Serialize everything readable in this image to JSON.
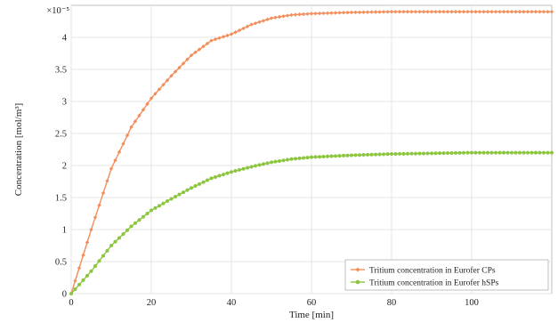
{
  "chart_data": {
    "type": "line",
    "title": "",
    "xlabel": "Time [min]",
    "ylabel": "Concentration [mol/m³]",
    "y_multiplier": "×10⁻⁵",
    "xlim": [
      0,
      120
    ],
    "ylim": [
      0,
      4.5
    ],
    "xticks": [
      0,
      20,
      40,
      60,
      80,
      100
    ],
    "yticks": [
      0,
      0.5,
      1,
      1.5,
      2,
      2.5,
      3,
      3.5,
      4
    ],
    "grid": true,
    "legend_position": "bottom-right",
    "series": [
      {
        "name": "Tritium concentration in Eurofer CPs",
        "color": "#f28e5b",
        "marker": "diamond",
        "x": [
          0,
          5,
          10,
          15,
          20,
          25,
          30,
          35,
          40,
          45,
          50,
          55,
          60,
          70,
          80,
          90,
          100,
          110,
          120
        ],
        "values": [
          0,
          1.0,
          1.95,
          2.6,
          3.05,
          3.4,
          3.72,
          3.95,
          4.05,
          4.2,
          4.3,
          4.35,
          4.37,
          4.39,
          4.4,
          4.4,
          4.4,
          4.4,
          4.4
        ]
      },
      {
        "name": "Tritium concentration in Eurofer hSPs",
        "color": "#8cc63f",
        "marker": "circle",
        "x": [
          0,
          5,
          10,
          15,
          20,
          25,
          30,
          35,
          40,
          45,
          50,
          55,
          60,
          70,
          80,
          90,
          100,
          110,
          120
        ],
        "values": [
          0,
          0.35,
          0.75,
          1.05,
          1.3,
          1.48,
          1.65,
          1.8,
          1.9,
          1.98,
          2.05,
          2.1,
          2.13,
          2.16,
          2.18,
          2.19,
          2.2,
          2.2,
          2.2
        ]
      }
    ]
  }
}
